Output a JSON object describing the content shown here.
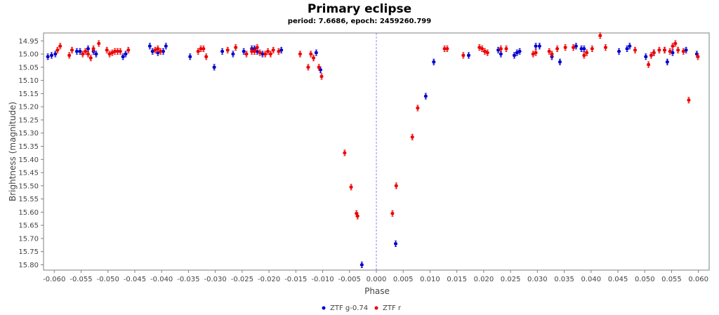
{
  "chart_data": {
    "type": "scatter",
    "title": "Primary eclipse",
    "subtitle": "period: 7.6686, epoch: 2459260.799",
    "xlabel": "Phase",
    "ylabel": "Brightness (magnitude)",
    "xlim": [
      -0.062,
      0.062
    ],
    "ylim": [
      15.82,
      14.92
    ],
    "y_inverted": true,
    "x_ticks": [
      -0.06,
      -0.055,
      -0.05,
      -0.045,
      -0.04,
      -0.035,
      -0.03,
      -0.025,
      -0.02,
      -0.015,
      -0.01,
      -0.005,
      0.0,
      0.005,
      0.01,
      0.015,
      0.02,
      0.025,
      0.03,
      0.035,
      0.04,
      0.045,
      0.05,
      0.055,
      0.06
    ],
    "x_tick_labels": [
      "-0.060",
      "-0.055",
      "-0.050",
      "-0.045",
      "-0.040",
      "-0.035",
      "-0.030",
      "-0.025",
      "-0.020",
      "-0.015",
      "-0.010",
      "-0.005",
      "0.000",
      "0.005",
      "0.010",
      "0.015",
      "0.020",
      "0.025",
      "0.030",
      "0.035",
      "0.040",
      "0.045",
      "0.050",
      "0.055",
      "0.060"
    ],
    "y_ticks": [
      14.95,
      15.0,
      15.05,
      15.1,
      15.15,
      15.2,
      15.25,
      15.3,
      15.35,
      15.4,
      15.45,
      15.5,
      15.55,
      15.6,
      15.65,
      15.7,
      15.75,
      15.8
    ],
    "y_tick_labels": [
      "14.95",
      "15.00",
      "15.05",
      "15.10",
      "15.15",
      "15.20",
      "15.25",
      "15.30",
      "15.35",
      "15.40",
      "15.45",
      "15.50",
      "15.55",
      "15.60",
      "15.65",
      "15.70",
      "15.75",
      "15.80"
    ],
    "vline_x": 0.0,
    "legend_position": "bottom",
    "series": [
      {
        "name": "ZTF g-0.74",
        "color": "#0000cc",
        "points": [
          [
            -0.0612,
            15.01
          ],
          [
            -0.0605,
            15.005
          ],
          [
            -0.0598,
            15.0
          ],
          [
            -0.0558,
            14.99
          ],
          [
            -0.0552,
            14.99
          ],
          [
            -0.0537,
            14.98
          ],
          [
            -0.0527,
            14.99
          ],
          [
            -0.0522,
            15.0
          ],
          [
            -0.0472,
            15.01
          ],
          [
            -0.0467,
            15.0
          ],
          [
            -0.0422,
            14.97
          ],
          [
            -0.0417,
            14.99
          ],
          [
            -0.0407,
            14.995
          ],
          [
            -0.0397,
            14.99
          ],
          [
            -0.0392,
            14.97
          ],
          [
            -0.0347,
            15.01
          ],
          [
            -0.0302,
            15.05
          ],
          [
            -0.0287,
            14.99
          ],
          [
            -0.0267,
            15.0
          ],
          [
            -0.0247,
            14.99
          ],
          [
            -0.0232,
            14.98
          ],
          [
            -0.0227,
            14.98
          ],
          [
            -0.0222,
            14.99
          ],
          [
            -0.0212,
            15.0
          ],
          [
            -0.0177,
            14.985
          ],
          [
            -0.0112,
            14.995
          ],
          [
            -0.0104,
            15.06
          ],
          [
            -0.0027,
            15.8
          ],
          [
            0.0036,
            15.72
          ],
          [
            0.0092,
            15.16
          ],
          [
            0.0107,
            15.03
          ],
          [
            0.0172,
            15.005
          ],
          [
            0.0227,
            14.985
          ],
          [
            0.0232,
            15.0
          ],
          [
            0.0257,
            15.005
          ],
          [
            0.0262,
            14.995
          ],
          [
            0.0267,
            14.99
          ],
          [
            0.0297,
            14.97
          ],
          [
            0.0304,
            14.97
          ],
          [
            0.0327,
            15.01
          ],
          [
            0.0342,
            15.03
          ],
          [
            0.0372,
            14.97
          ],
          [
            0.0382,
            14.98
          ],
          [
            0.0387,
            14.98
          ],
          [
            0.0452,
            14.99
          ],
          [
            0.0467,
            14.98
          ],
          [
            0.0472,
            14.97
          ],
          [
            0.0502,
            15.01
          ],
          [
            0.0517,
            14.995
          ],
          [
            0.0537,
            14.985
          ],
          [
            0.0542,
            15.03
          ],
          [
            0.0552,
            14.995
          ],
          [
            0.0577,
            14.985
          ],
          [
            0.0597,
            15.0
          ]
        ]
      },
      {
        "name": "ZTF r",
        "color": "#ee0000",
        "points": [
          [
            -0.0594,
            14.985
          ],
          [
            -0.0589,
            14.97
          ],
          [
            -0.0572,
            15.005
          ],
          [
            -0.0567,
            14.985
          ],
          [
            -0.0547,
            15.0
          ],
          [
            -0.0542,
            14.99
          ],
          [
            -0.0537,
            15.0
          ],
          [
            -0.0532,
            15.015
          ],
          [
            -0.0527,
            14.98
          ],
          [
            -0.0517,
            14.96
          ],
          [
            -0.0502,
            14.985
          ],
          [
            -0.0497,
            15.0
          ],
          [
            -0.0492,
            14.995
          ],
          [
            -0.0487,
            14.99
          ],
          [
            -0.0482,
            14.99
          ],
          [
            -0.0477,
            14.99
          ],
          [
            -0.0462,
            14.985
          ],
          [
            -0.0412,
            14.985
          ],
          [
            -0.0407,
            14.98
          ],
          [
            -0.0402,
            14.99
          ],
          [
            -0.0332,
            14.99
          ],
          [
            -0.0327,
            14.98
          ],
          [
            -0.0322,
            14.98
          ],
          [
            -0.0317,
            15.01
          ],
          [
            -0.0277,
            14.985
          ],
          [
            -0.0262,
            14.975
          ],
          [
            -0.0242,
            15.0
          ],
          [
            -0.0232,
            14.99
          ],
          [
            -0.0227,
            14.99
          ],
          [
            -0.0222,
            14.975
          ],
          [
            -0.0217,
            14.995
          ],
          [
            -0.0207,
            15.0
          ],
          [
            -0.0202,
            14.99
          ],
          [
            -0.0197,
            15.0
          ],
          [
            -0.0192,
            14.985
          ],
          [
            -0.0182,
            14.99
          ],
          [
            -0.0142,
            15.0
          ],
          [
            -0.0127,
            15.05
          ],
          [
            -0.0122,
            15.0
          ],
          [
            -0.0117,
            15.015
          ],
          [
            -0.0107,
            15.05
          ],
          [
            -0.0102,
            15.085
          ],
          [
            -0.0059,
            15.375
          ],
          [
            -0.0047,
            15.505
          ],
          [
            -0.0037,
            15.605
          ],
          [
            -0.0035,
            15.615
          ],
          [
            0.003,
            15.605
          ],
          [
            0.0037,
            15.5
          ],
          [
            0.0067,
            15.315
          ],
          [
            0.0077,
            15.205
          ],
          [
            0.0127,
            14.98
          ],
          [
            0.0132,
            14.98
          ],
          [
            0.0162,
            15.005
          ],
          [
            0.0192,
            14.975
          ],
          [
            0.0197,
            14.98
          ],
          [
            0.0202,
            14.99
          ],
          [
            0.0207,
            14.995
          ],
          [
            0.0232,
            14.98
          ],
          [
            0.0242,
            14.98
          ],
          [
            0.0292,
            15.0
          ],
          [
            0.0297,
            14.995
          ],
          [
            0.0322,
            14.99
          ],
          [
            0.0327,
            15.0
          ],
          [
            0.0337,
            14.98
          ],
          [
            0.0352,
            14.975
          ],
          [
            0.0367,
            14.975
          ],
          [
            0.0387,
            15.005
          ],
          [
            0.0392,
            14.995
          ],
          [
            0.0402,
            14.98
          ],
          [
            0.0417,
            14.93
          ],
          [
            0.0427,
            14.975
          ],
          [
            0.0482,
            14.985
          ],
          [
            0.0507,
            15.04
          ],
          [
            0.0512,
            15.005
          ],
          [
            0.0517,
            14.995
          ],
          [
            0.0527,
            14.985
          ],
          [
            0.0537,
            14.985
          ],
          [
            0.0547,
            14.99
          ],
          [
            0.0552,
            14.97
          ],
          [
            0.0557,
            14.96
          ],
          [
            0.0562,
            14.985
          ],
          [
            0.0572,
            14.99
          ],
          [
            0.0582,
            15.175
          ],
          [
            0.0599,
            15.01
          ]
        ]
      }
    ]
  }
}
